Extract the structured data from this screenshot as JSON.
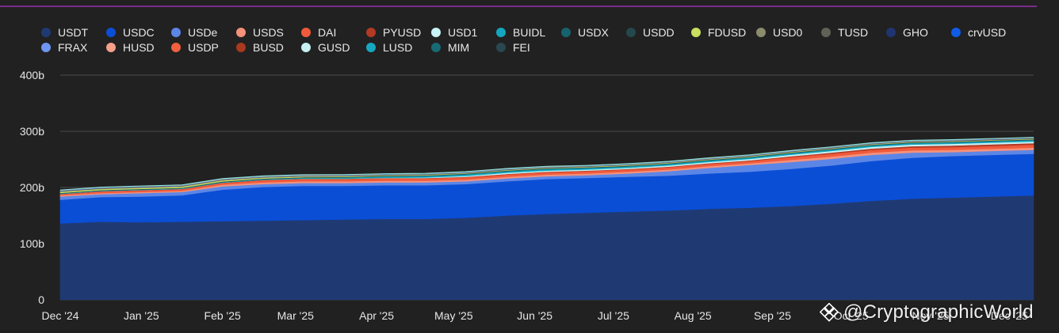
{
  "chart_data": {
    "type": "area",
    "stacked": true,
    "title": "",
    "xlabel": "",
    "ylabel": "",
    "ylim": [
      0,
      400
    ],
    "y_ticks": [
      {
        "value": 0,
        "label": "0"
      },
      {
        "value": 100,
        "label": "100b"
      },
      {
        "value": 200,
        "label": "200b"
      },
      {
        "value": 300,
        "label": "300b"
      },
      {
        "value": 400,
        "label": "400b"
      }
    ],
    "x_ticks": [
      {
        "t": 0.0,
        "label": "Dec '24"
      },
      {
        "t": 1.0,
        "label": "Jan '25"
      },
      {
        "t": 2.0,
        "label": "Feb '25"
      },
      {
        "t": 2.9,
        "label": "Mar '25"
      },
      {
        "t": 3.9,
        "label": "Apr '25"
      },
      {
        "t": 4.85,
        "label": "May '25"
      },
      {
        "t": 5.85,
        "label": "Jun '25"
      },
      {
        "t": 6.82,
        "label": "Jul '25"
      },
      {
        "t": 7.8,
        "label": "Aug '25"
      },
      {
        "t": 8.78,
        "label": "Sep '25"
      },
      {
        "t": 9.75,
        "label": "Oct '25"
      },
      {
        "t": 10.73,
        "label": "Nov '25"
      },
      {
        "t": 11.7,
        "label": "Dec '25"
      }
    ],
    "x": [
      0,
      0.5,
      1.0,
      1.5,
      2.0,
      2.5,
      3.0,
      3.5,
      4.0,
      4.5,
      5.0,
      5.5,
      6.0,
      6.5,
      7.0,
      7.5,
      8.0,
      8.5,
      9.0,
      9.5,
      10.0,
      10.5,
      11.0,
      11.5,
      12.0
    ],
    "x_range": [
      0,
      12.0
    ],
    "legend_position": "top",
    "grid": true,
    "series": [
      {
        "name": "USDT",
        "color": "#1f3a73",
        "values": [
          136,
          139,
          138,
          139,
          140,
          141,
          142,
          143,
          144,
          144,
          146,
          150,
          153,
          155,
          157,
          159,
          162,
          164,
          167,
          171,
          176,
          180,
          182,
          184,
          186
        ]
      },
      {
        "name": "USDC",
        "color": "#0b4ed6",
        "values": [
          42,
          44,
          46,
          47,
          56,
          60,
          61,
          60,
          60,
          60,
          60,
          61,
          62,
          62,
          62,
          62,
          63,
          64,
          66,
          68,
          71,
          73,
          74,
          74,
          74
        ]
      },
      {
        "name": "USDe",
        "color": "#5c86e6",
        "values": [
          6,
          5,
          6,
          6,
          6,
          5,
          5,
          5,
          5,
          5,
          5,
          5,
          5,
          5,
          6,
          8,
          10,
          12,
          12,
          12,
          11,
          9,
          7,
          7,
          7
        ]
      },
      {
        "name": "USDS",
        "color": "#f4917a",
        "values": [
          2,
          2,
          2,
          2,
          3,
          3,
          3,
          3,
          3,
          3,
          3,
          3,
          3,
          3,
          3,
          3,
          3,
          3,
          4,
          4,
          4,
          4,
          4,
          4,
          4
        ]
      },
      {
        "name": "DAI",
        "color": "#f05a3b",
        "values": [
          2,
          3,
          3,
          3,
          3,
          4,
          4,
          4,
          4,
          4,
          4,
          4,
          4,
          4,
          4,
          4,
          4,
          4,
          5,
          5,
          5,
          5,
          5,
          5,
          5
        ]
      },
      {
        "name": "PYUSD",
        "color": "#b13a25",
        "values": [
          0.5,
          0.5,
          0.5,
          0.5,
          0.6,
          0.6,
          0.7,
          0.7,
          0.8,
          0.8,
          0.9,
          1.0,
          1.0,
          1.0,
          1.0,
          1.1,
          1.2,
          1.3,
          1.5,
          2.0,
          2.3,
          2.5,
          2.7,
          2.8,
          2.9
        ]
      },
      {
        "name": "USD1",
        "color": "#c9f2f5",
        "values": [
          0,
          0,
          0,
          0,
          0,
          0,
          0,
          0,
          0.5,
          1.0,
          1.5,
          2.0,
          2.0,
          2.0,
          2.0,
          2.1,
          2.3,
          2.5,
          2.7,
          2.8,
          2.9,
          3.0,
          3.0,
          3.0,
          3.0
        ]
      },
      {
        "name": "BUIDL",
        "color": "#13a6bf",
        "values": [
          0.6,
          0.6,
          0.7,
          0.7,
          0.7,
          1.0,
          1.3,
          1.8,
          2.2,
          2.5,
          2.8,
          2.8,
          2.8,
          2.5,
          2.5,
          2.5,
          2.5,
          2.5,
          2.5,
          2.5,
          2.5,
          2.5,
          2.5,
          2.5,
          2.5
        ]
      },
      {
        "name": "USDX",
        "color": "#16636f",
        "values": [
          0.5,
          0.5,
          0.5,
          0.5,
          0.6,
          0.6,
          0.6,
          0.6,
          0.6,
          0.6,
          0.7,
          0.7,
          0.7,
          0.7,
          0.7,
          0.7,
          0.7,
          0.7,
          0.7,
          0.7,
          0.7,
          0.7,
          0.7,
          0.6,
          0.6
        ]
      },
      {
        "name": "USDD",
        "color": "#24484c",
        "values": [
          0.7,
          0.7,
          0.7,
          0.7,
          0.7,
          0.7,
          0.7,
          0.7,
          0.7,
          0.7,
          0.7,
          0.7,
          0.7,
          0.7,
          0.7,
          0.7,
          0.7,
          0.7,
          0.7,
          0.7,
          0.7,
          0.7,
          0.7,
          0.7,
          0.7
        ]
      },
      {
        "name": "FDUSD",
        "color": "#c8df5f",
        "values": [
          2,
          2,
          2,
          2,
          2,
          1.5,
          1.2,
          1.0,
          0.8,
          0.8,
          0.8,
          0.8,
          0.8,
          0.8,
          0.8,
          0.8,
          0.8,
          0.8,
          0.8,
          0.8,
          0.8,
          0.8,
          0.8,
          0.8,
          0.8
        ]
      },
      {
        "name": "USD0",
        "color": "#8b8c6b",
        "values": [
          1.0,
          1.0,
          1.0,
          1.0,
          1.0,
          1.0,
          1.0,
          1.0,
          0.8,
          0.7,
          0.6,
          0.6,
          0.6,
          0.6,
          0.6,
          0.6,
          0.6,
          0.6,
          0.6,
          0.6,
          0.6,
          0.6,
          0.6,
          0.6,
          0.6
        ]
      },
      {
        "name": "TUSD",
        "color": "#5f6357",
        "values": [
          0.5,
          0.5,
          0.5,
          0.5,
          0.5,
          0.5,
          0.5,
          0.5,
          0.5,
          0.5,
          0.5,
          0.5,
          0.5,
          0.5,
          0.5,
          0.5,
          0.5,
          0.5,
          0.5,
          0.5,
          0.5,
          0.5,
          0.5,
          0.5,
          0.5
        ]
      },
      {
        "name": "GHO",
        "color": "#1f3570",
        "values": [
          0.2,
          0.2,
          0.2,
          0.2,
          0.2,
          0.2,
          0.2,
          0.2,
          0.2,
          0.2,
          0.2,
          0.2,
          0.2,
          0.2,
          0.2,
          0.2,
          0.2,
          0.2,
          0.3,
          0.3,
          0.3,
          0.3,
          0.3,
          0.3,
          0.3
        ]
      },
      {
        "name": "crvUSD",
        "color": "#0f5de6",
        "values": [
          0.1,
          0.1,
          0.1,
          0.1,
          0.1,
          0.1,
          0.1,
          0.1,
          0.1,
          0.1,
          0.1,
          0.1,
          0.1,
          0.1,
          0.1,
          0.1,
          0.1,
          0.1,
          0.1,
          0.1,
          0.1,
          0.1,
          0.1,
          0.1,
          0.1
        ]
      },
      {
        "name": "FRAX",
        "color": "#6e96f2",
        "values": [
          0.6,
          0.6,
          0.6,
          0.6,
          0.5,
          0.5,
          0.5,
          0.5,
          0.5,
          0.5,
          0.5,
          0.5,
          0.4,
          0.4,
          0.4,
          0.4,
          0.4,
          0.4,
          0.4,
          0.4,
          0.4,
          0.4,
          0.4,
          0.4,
          0.4
        ]
      },
      {
        "name": "HUSD",
        "color": "#f3a08a",
        "values": [
          0.1,
          0.1,
          0.1,
          0.1,
          0.1,
          0.1,
          0.1,
          0.1,
          0.1,
          0.1,
          0.1,
          0.1,
          0.1,
          0.1,
          0.1,
          0.1,
          0.1,
          0.1,
          0.1,
          0.1,
          0.1,
          0.1,
          0.1,
          0.1,
          0.1
        ]
      },
      {
        "name": "USDP",
        "color": "#f0603f",
        "values": [
          0.1,
          0.1,
          0.1,
          0.1,
          0.1,
          0.1,
          0.1,
          0.1,
          0.1,
          0.1,
          0.1,
          0.1,
          0.1,
          0.1,
          0.1,
          0.1,
          0.1,
          0.1,
          0.1,
          0.1,
          0.1,
          0.1,
          0.1,
          0.1,
          0.1
        ]
      },
      {
        "name": "BUSD",
        "color": "#a8391f",
        "values": [
          0.1,
          0.1,
          0.1,
          0.1,
          0.1,
          0.1,
          0.1,
          0.1,
          0.1,
          0.1,
          0.1,
          0.1,
          0.1,
          0.1,
          0.1,
          0.1,
          0.1,
          0.1,
          0.1,
          0.1,
          0.1,
          0.1,
          0.1,
          0.1,
          0.1
        ]
      },
      {
        "name": "GUSD",
        "color": "#c7f0f0",
        "values": [
          0.1,
          0.1,
          0.1,
          0.1,
          0.1,
          0.1,
          0.1,
          0.1,
          0.1,
          0.1,
          0.1,
          0.1,
          0.1,
          0.1,
          0.1,
          0.1,
          0.1,
          0.1,
          0.1,
          0.1,
          0.1,
          0.1,
          0.1,
          0.1,
          0.1
        ]
      },
      {
        "name": "LUSD",
        "color": "#17a7c1",
        "values": [
          0.1,
          0.1,
          0.1,
          0.1,
          0.1,
          0.1,
          0.1,
          0.1,
          0.1,
          0.1,
          0.1,
          0.1,
          0.1,
          0.1,
          0.1,
          0.1,
          0.1,
          0.1,
          0.1,
          0.1,
          0.1,
          0.1,
          0.1,
          0.1,
          0.1
        ]
      },
      {
        "name": "MIM",
        "color": "#176a73",
        "values": [
          0.1,
          0.1,
          0.1,
          0.1,
          0.1,
          0.1,
          0.1,
          0.1,
          0.1,
          0.1,
          0.1,
          0.1,
          0.1,
          0.1,
          0.1,
          0.1,
          0.1,
          0.1,
          0.1,
          0.1,
          0.1,
          0.1,
          0.1,
          0.1,
          0.1
        ]
      },
      {
        "name": "FEI",
        "color": "#2b4750",
        "values": [
          0.1,
          0.1,
          0.1,
          0.1,
          0.1,
          0.1,
          0.1,
          0.1,
          0.1,
          0.1,
          0.1,
          0.1,
          0.1,
          0.1,
          0.1,
          0.1,
          0.1,
          0.1,
          0.1,
          0.1,
          0.1,
          0.1,
          0.1,
          0.1,
          0.1
        ]
      }
    ]
  },
  "watermark": {
    "text": "@CryptographicWorld",
    "icon": "binance-diamond-icon"
  },
  "colors": {
    "background": "#212121",
    "grid": "#4a4a4a",
    "axis_text": "#e6e6e6",
    "accent_line": "#7b2c8c"
  }
}
